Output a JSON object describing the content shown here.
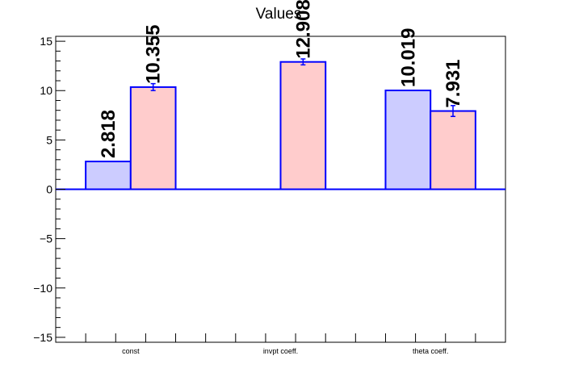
{
  "chart_data": {
    "type": "bar",
    "title": "Values",
    "xlabel": "",
    "ylabel": "",
    "categories": [
      "const",
      "invpt coeff.",
      "theta coeff."
    ],
    "ylim": [
      -15.5,
      15.5
    ],
    "yticks": [
      -15,
      -10,
      -5,
      0,
      5,
      10,
      15
    ],
    "ytick_labels": [
      "−15",
      "−10",
      "−5",
      "0",
      "5",
      "10",
      "15"
    ],
    "grid": false,
    "series": [
      {
        "color": "#ccccff",
        "values": [
          2.818,
          null,
          10.019
        ],
        "errors": [
          0,
          null,
          0
        ],
        "labels": [
          "2.818",
          "",
          "10.019"
        ]
      },
      {
        "color": "#ffcccc",
        "values": [
          10.355,
          12.908,
          7.931
        ],
        "errors": [
          0.35,
          0.3,
          0.55
        ],
        "labels": [
          "10.355",
          "12.908",
          "7.931"
        ]
      }
    ],
    "edge_color": "#0000ff"
  }
}
